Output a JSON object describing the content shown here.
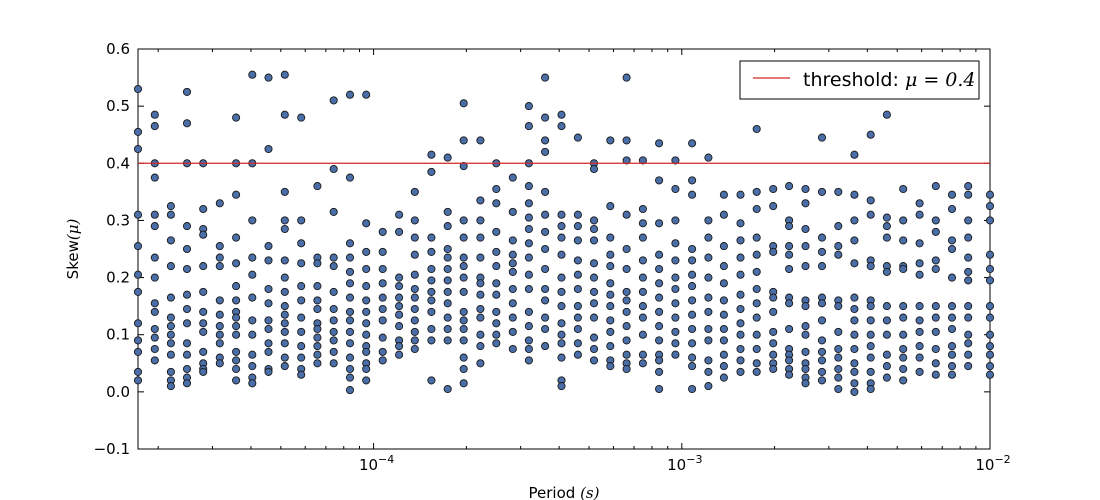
{
  "chart_data": {
    "type": "scatter",
    "title": "",
    "xlabel": "Period",
    "xlabel_unit": "(s)",
    "ylabel": "Skew",
    "ylabel_unit": "(μ)",
    "xscale": "log",
    "xlim": [
      1.72e-05,
      0.01
    ],
    "ylim": [
      -0.1,
      0.6
    ],
    "yticks": [
      "−0.1",
      "0.0",
      "0.1",
      "0.2",
      "0.3",
      "0.4",
      "0.5",
      "0.6"
    ],
    "xticks": [
      {
        "base": "10",
        "exp": "−4",
        "value": 0.0001
      },
      {
        "base": "10",
        "exp": "−3",
        "value": 0.001
      },
      {
        "base": "10",
        "exp": "−2",
        "value": 0.01
      }
    ],
    "grid": false,
    "legend_position": "top-right",
    "threshold": {
      "label": "threshold:",
      "math": "μ = 0.4",
      "value": 0.4,
      "color": "#d62728"
    },
    "marker": {
      "fill": "#4a6ea8",
      "edge": "#1a1a1a"
    },
    "columns_x": [
      1.72e-05,
      1.95e-05,
      2.2e-05,
      2.48e-05,
      2.8e-05,
      3.17e-05,
      3.58e-05,
      4.04e-05,
      4.56e-05,
      5.15e-05,
      5.82e-05,
      6.57e-05,
      7.42e-05,
      8.38e-05,
      9.46e-05,
      0.000107,
      0.000121,
      0.000136,
      0.000154,
      0.000174,
      0.000196,
      0.000222,
      0.00025,
      0.000283,
      0.000319,
      0.00036,
      0.000407,
      0.00046,
      0.000519,
      0.000586,
      0.000662,
      0.000748,
      0.000844,
      0.000953,
      0.00108,
      0.00122,
      0.00137,
      0.00155,
      0.00175,
      0.00198,
      0.00223,
      0.00252,
      0.00285,
      0.00322,
      0.00363,
      0.0041,
      0.00463,
      0.00523,
      0.00591,
      0.00667,
      0.00753,
      0.0085,
      0.01
    ],
    "columns_y": [
      [
        0.53,
        0.455,
        0.425,
        0.31,
        0.255,
        0.205,
        0.175,
        0.12,
        0.09,
        0.07,
        0.035,
        0.02
      ],
      [
        0.485,
        0.465,
        0.4,
        0.375,
        0.31,
        0.29,
        0.235,
        0.2,
        0.155,
        0.14,
        0.11,
        0.095,
        0.075,
        0.055
      ],
      [
        0.325,
        0.31,
        0.265,
        0.22,
        0.165,
        0.13,
        0.115,
        0.1,
        0.085,
        0.065,
        0.035,
        0.02,
        0.01
      ],
      [
        0.525,
        0.47,
        0.4,
        0.29,
        0.25,
        0.215,
        0.17,
        0.145,
        0.12,
        0.085,
        0.065,
        0.04,
        0.025,
        0.015
      ],
      [
        0.4,
        0.32,
        0.285,
        0.275,
        0.22,
        0.175,
        0.14,
        0.12,
        0.105,
        0.07,
        0.05,
        0.04,
        0.035
      ],
      [
        0.33,
        0.255,
        0.235,
        0.22,
        0.16,
        0.135,
        0.115,
        0.1,
        0.085,
        0.06,
        0.05
      ],
      [
        0.48,
        0.4,
        0.345,
        0.27,
        0.225,
        0.185,
        0.16,
        0.14,
        0.13,
        0.115,
        0.1,
        0.07,
        0.055,
        0.04,
        0.02
      ],
      [
        0.555,
        0.4,
        0.3,
        0.235,
        0.205,
        0.165,
        0.125,
        0.1,
        0.065,
        0.045,
        0.025,
        0.015
      ],
      [
        0.55,
        0.425,
        0.255,
        0.23,
        0.18,
        0.155,
        0.125,
        0.11,
        0.085,
        0.07,
        0.04,
        0.035
      ],
      [
        0.555,
        0.485,
        0.35,
        0.3,
        0.285,
        0.23,
        0.2,
        0.175,
        0.15,
        0.135,
        0.12,
        0.105,
        0.085,
        0.06,
        0.045
      ],
      [
        0.48,
        0.3,
        0.26,
        0.225,
        0.185,
        0.16,
        0.13,
        0.105,
        0.08,
        0.06,
        0.04,
        0.03
      ],
      [
        0.36,
        0.235,
        0.225,
        0.185,
        0.16,
        0.145,
        0.12,
        0.11,
        0.095,
        0.08,
        0.065,
        0.05
      ],
      [
        0.51,
        0.39,
        0.315,
        0.235,
        0.22,
        0.175,
        0.145,
        0.125,
        0.105,
        0.09,
        0.07,
        0.05
      ],
      [
        0.52,
        0.375,
        0.26,
        0.235,
        0.21,
        0.19,
        0.165,
        0.14,
        0.125,
        0.105,
        0.085,
        0.06,
        0.04,
        0.025,
        0.003
      ],
      [
        0.52,
        0.295,
        0.245,
        0.215,
        0.185,
        0.16,
        0.14,
        0.12,
        0.1,
        0.08,
        0.07,
        0.05,
        0.04,
        0.02
      ],
      [
        0.28,
        0.245,
        0.215,
        0.19,
        0.165,
        0.145,
        0.125,
        0.095,
        0.07,
        0.055
      ],
      [
        0.31,
        0.28,
        0.2,
        0.185,
        0.165,
        0.15,
        0.135,
        0.115,
        0.09,
        0.08,
        0.065
      ],
      [
        0.35,
        0.3,
        0.27,
        0.24,
        0.205,
        0.18,
        0.165,
        0.145,
        0.125,
        0.105,
        0.09,
        0.075
      ],
      [
        0.415,
        0.385,
        0.27,
        0.245,
        0.215,
        0.195,
        0.175,
        0.16,
        0.14,
        0.11,
        0.09,
        0.02
      ],
      [
        0.41,
        0.315,
        0.29,
        0.25,
        0.235,
        0.215,
        0.195,
        0.175,
        0.155,
        0.13,
        0.11,
        0.09,
        0.005
      ],
      [
        0.505,
        0.44,
        0.395,
        0.3,
        0.27,
        0.235,
        0.22,
        0.2,
        0.175,
        0.14,
        0.125,
        0.11,
        0.09,
        0.06,
        0.04,
        0.015
      ],
      [
        0.44,
        0.335,
        0.3,
        0.27,
        0.235,
        0.2,
        0.19,
        0.17,
        0.145,
        0.13,
        0.1,
        0.08,
        0.05
      ],
      [
        0.4,
        0.355,
        0.33,
        0.28,
        0.245,
        0.22,
        0.19,
        0.17,
        0.14,
        0.12,
        0.1,
        0.085
      ],
      [
        0.375,
        0.315,
        0.265,
        0.24,
        0.225,
        0.21,
        0.18,
        0.155,
        0.13,
        0.105,
        0.075
      ],
      [
        0.5,
        0.465,
        0.4,
        0.36,
        0.33,
        0.305,
        0.285,
        0.26,
        0.235,
        0.205,
        0.18,
        0.14,
        0.115,
        0.09,
        0.075,
        0.055
      ],
      [
        0.55,
        0.48,
        0.44,
        0.42,
        0.35,
        0.31,
        0.28,
        0.25,
        0.215,
        0.18,
        0.16,
        0.13,
        0.11,
        0.08
      ],
      [
        0.485,
        0.465,
        0.31,
        0.29,
        0.27,
        0.24,
        0.2,
        0.175,
        0.15,
        0.12,
        0.1,
        0.085,
        0.06,
        0.02,
        0.01
      ],
      [
        0.445,
        0.31,
        0.29,
        0.265,
        0.23,
        0.205,
        0.18,
        0.15,
        0.13,
        0.11,
        0.085,
        0.065
      ],
      [
        0.4,
        0.39,
        0.3,
        0.285,
        0.265,
        0.225,
        0.2,
        0.175,
        0.155,
        0.13,
        0.095,
        0.075,
        0.055
      ],
      [
        0.44,
        0.325,
        0.27,
        0.24,
        0.22,
        0.19,
        0.17,
        0.15,
        0.125,
        0.105,
        0.08,
        0.055,
        0.045
      ],
      [
        0.55,
        0.44,
        0.405,
        0.31,
        0.25,
        0.215,
        0.175,
        0.16,
        0.14,
        0.115,
        0.09,
        0.065,
        0.05,
        0.04
      ],
      [
        0.405,
        0.32,
        0.295,
        0.27,
        0.23,
        0.2,
        0.175,
        0.15,
        0.13,
        0.1,
        0.065,
        0.05
      ],
      [
        0.435,
        0.37,
        0.295,
        0.24,
        0.215,
        0.19,
        0.165,
        0.14,
        0.115,
        0.09,
        0.065,
        0.055,
        0.035,
        0.005
      ],
      [
        0.405,
        0.355,
        0.3,
        0.26,
        0.23,
        0.2,
        0.18,
        0.155,
        0.13,
        0.105,
        0.085,
        0.065
      ],
      [
        0.435,
        0.37,
        0.345,
        0.25,
        0.23,
        0.205,
        0.185,
        0.16,
        0.135,
        0.11,
        0.085,
        0.06,
        0.045,
        0.005
      ],
      [
        0.41,
        0.3,
        0.27,
        0.235,
        0.2,
        0.165,
        0.14,
        0.11,
        0.09,
        0.055,
        0.035,
        0.01
      ],
      [
        0.345,
        0.31,
        0.255,
        0.22,
        0.19,
        0.16,
        0.135,
        0.11,
        0.09,
        0.065,
        0.045,
        0.025
      ],
      [
        0.345,
        0.295,
        0.265,
        0.235,
        0.205,
        0.17,
        0.145,
        0.12,
        0.1,
        0.075,
        0.055,
        0.035
      ],
      [
        0.46,
        0.35,
        0.32,
        0.27,
        0.24,
        0.21,
        0.18,
        0.155,
        0.13,
        0.1,
        0.075,
        0.05,
        0.035
      ],
      [
        0.355,
        0.325,
        0.255,
        0.245,
        0.175,
        0.165,
        0.14,
        0.105,
        0.085,
        0.065,
        0.05,
        0.04
      ],
      [
        0.36,
        0.3,
        0.29,
        0.255,
        0.24,
        0.215,
        0.165,
        0.155,
        0.11,
        0.075,
        0.065,
        0.055,
        0.04,
        0.03
      ],
      [
        0.355,
        0.33,
        0.285,
        0.255,
        0.22,
        0.16,
        0.15,
        0.115,
        0.1,
        0.07,
        0.05,
        0.04,
        0.025,
        0.015
      ],
      [
        0.445,
        0.35,
        0.27,
        0.245,
        0.22,
        0.165,
        0.155,
        0.125,
        0.09,
        0.07,
        0.055,
        0.035,
        0.02
      ],
      [
        0.35,
        0.29,
        0.255,
        0.24,
        0.16,
        0.15,
        0.105,
        0.075,
        0.06,
        0.04,
        0.025,
        0.005
      ],
      [
        0.415,
        0.345,
        0.3,
        0.265,
        0.225,
        0.165,
        0.145,
        0.125,
        0.1,
        0.075,
        0.05,
        0.035,
        0.015,
        0.0
      ],
      [
        0.45,
        0.335,
        0.31,
        0.23,
        0.22,
        0.16,
        0.15,
        0.125,
        0.1,
        0.08,
        0.06,
        0.035,
        0.015,
        0.005
      ],
      [
        0.485,
        0.305,
        0.29,
        0.27,
        0.22,
        0.21,
        0.15,
        0.125,
        0.1,
        0.065,
        0.045,
        0.025
      ],
      [
        0.355,
        0.3,
        0.265,
        0.22,
        0.215,
        0.15,
        0.13,
        0.1,
        0.075,
        0.06,
        0.04,
        0.02
      ],
      [
        0.33,
        0.31,
        0.26,
        0.225,
        0.205,
        0.15,
        0.125,
        0.105,
        0.08,
        0.06,
        0.035
      ],
      [
        0.36,
        0.3,
        0.28,
        0.23,
        0.215,
        0.15,
        0.13,
        0.105,
        0.075,
        0.05,
        0.03
      ],
      [
        0.345,
        0.32,
        0.265,
        0.25,
        0.2,
        0.15,
        0.13,
        0.11,
        0.08,
        0.065,
        0.045,
        0.03
      ],
      [
        0.36,
        0.345,
        0.3,
        0.27,
        0.235,
        0.21,
        0.195,
        0.15,
        0.13,
        0.1,
        0.085,
        0.065,
        0.045
      ],
      [
        0.345,
        0.325,
        0.3,
        0.24,
        0.215,
        0.195,
        0.15,
        0.13,
        0.1,
        0.08,
        0.065,
        0.045,
        0.03
      ]
    ]
  }
}
